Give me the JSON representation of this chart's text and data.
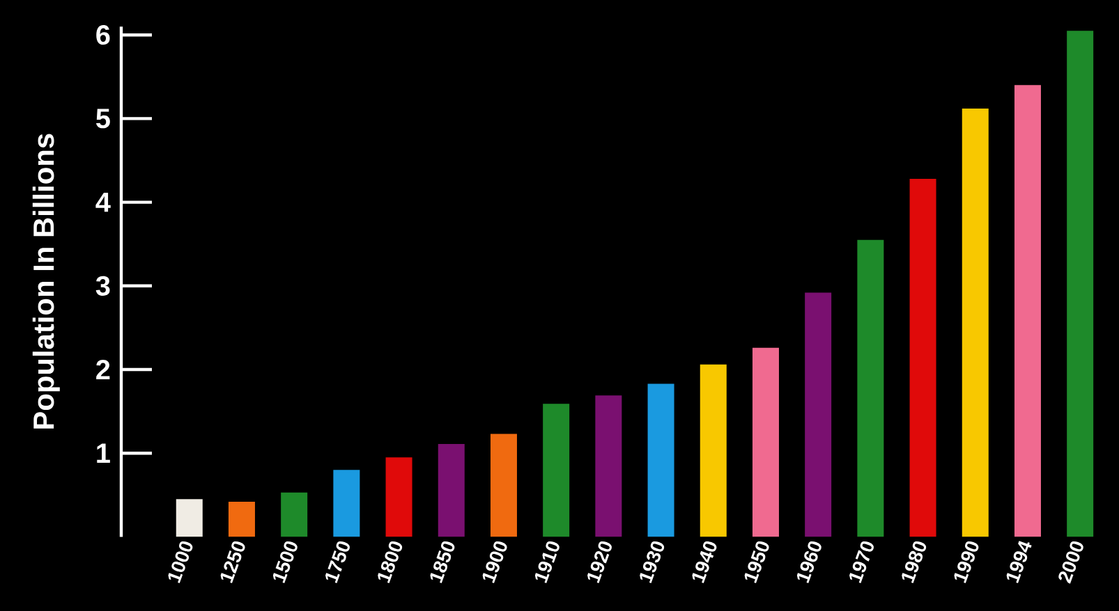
{
  "chart_data": {
    "type": "bar",
    "ylabel": "Population In Billions",
    "categories": [
      "1000",
      "1250",
      "1500",
      "1750",
      "1800",
      "1850",
      "1900",
      "1910",
      "1920",
      "1930",
      "1940",
      "1950",
      "1960",
      "1970",
      "1980",
      "1990",
      "1994",
      "2000"
    ],
    "values": [
      0.45,
      0.42,
      0.53,
      0.8,
      0.95,
      1.11,
      1.23,
      1.59,
      1.69,
      1.83,
      2.06,
      2.26,
      2.92,
      3.55,
      4.28,
      5.12,
      5.4,
      6.05
    ],
    "colors": [
      "#f0ece4",
      "#f06a10",
      "#1e8a2a",
      "#1a9ae0",
      "#e00a0a",
      "#7a1070",
      "#f06a10",
      "#1e8a2a",
      "#7a1070",
      "#1a9ae0",
      "#f8c800",
      "#f06a90",
      "#7a1070",
      "#1e8a2a",
      "#e00a0a",
      "#f8c800",
      "#f06a90",
      "#1e8a2a"
    ],
    "ylim": [
      0,
      6.1
    ],
    "yticks": [
      1,
      2,
      3,
      4,
      5,
      6
    ],
    "grid": false
  }
}
